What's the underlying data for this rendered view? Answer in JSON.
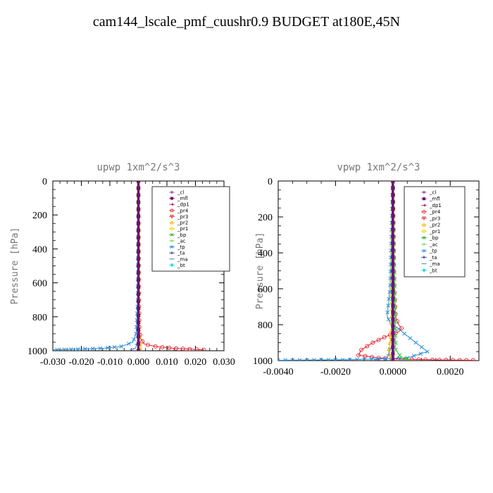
{
  "page": {
    "title": "cam144_lscale_pmf_cuushr0.9  BUDGET at180E,45N"
  },
  "chart_data": [
    {
      "type": "line",
      "title": "upwp  1xm^2/s^3",
      "xlabel": "",
      "ylabel": "Pressure [hPa]",
      "xlim": [
        -0.03,
        0.03
      ],
      "ylim": [
        1000,
        0
      ],
      "xticks": [
        -0.03,
        -0.02,
        -0.01,
        0.0,
        0.01,
        0.02,
        0.03
      ],
      "xtick_labels": [
        "-0.030",
        "-0.020",
        "-0.010",
        "0.000",
        "0.010",
        "0.020",
        "0.030"
      ],
      "yticks": [
        0,
        200,
        400,
        600,
        800,
        1000
      ],
      "ytick_labels": [
        "0",
        "200",
        "400",
        "600",
        "800",
        "1000"
      ],
      "legend": [
        "_cl",
        "_mfl",
        "_dp1",
        "_pr4",
        "_pr3",
        "_pr2",
        "_pr1",
        "_bp",
        "_ac",
        "_tp",
        "_ta",
        "_ma",
        "_bt"
      ],
      "series": [
        {
          "name": "_pr4",
          "color": "#e8202a",
          "marker": "o",
          "x": [
            0.0,
            0.0001,
            0.0003,
            0.0008,
            0.002,
            0.006,
            0.012,
            0.018,
            0.023
          ],
          "y": [
            0,
            600,
            860,
            930,
            960,
            975,
            985,
            990,
            995
          ]
        },
        {
          "name": "_tp",
          "color": "#2f8fd8",
          "marker": "x",
          "x": [
            0.0,
            -0.0002,
            -0.0008,
            -0.002,
            -0.006,
            -0.012,
            -0.02,
            -0.026,
            -0.031
          ],
          "y": [
            0,
            700,
            900,
            950,
            975,
            985,
            990,
            993,
            995
          ]
        },
        {
          "name": "_pr2",
          "color": "#f5b400",
          "marker": "^",
          "x": [
            0.0,
            0.0001,
            0.0005,
            0.001,
            0.0008
          ],
          "y": [
            0,
            850,
            960,
            985,
            995
          ]
        },
        {
          "name": "_ma",
          "color": "#4488cc",
          "marker": "-",
          "x": [
            0.0,
            -0.0003,
            -0.001,
            -0.003
          ],
          "y": [
            0,
            940,
            985,
            995
          ]
        },
        {
          "name": "_bt",
          "color": "#00e0e0",
          "marker": "d",
          "x": [
            0.0,
            0.0,
            0.0
          ],
          "y": [
            0,
            500,
            1000
          ]
        },
        {
          "name": "_cl",
          "color": "#8a5bb0",
          "marker": "*",
          "x": [
            0.0,
            0.0,
            0.0
          ],
          "y": [
            0,
            500,
            1000
          ]
        },
        {
          "name": "_mfl",
          "color": "#6a1470",
          "marker": "s",
          "x": [
            0.0,
            0.0,
            0.0
          ],
          "y": [
            0,
            500,
            1000
          ]
        }
      ]
    },
    {
      "type": "line",
      "title": "vpwp  1xm^2/s^3",
      "xlabel": "",
      "ylabel": "Pressure [hPa]",
      "xlim": [
        -0.004,
        0.003
      ],
      "ylim": [
        1000,
        0
      ],
      "xticks": [
        -0.004,
        -0.002,
        0.0,
        0.002
      ],
      "xtick_labels": [
        "-0.0040",
        "-0.0020",
        "0.0000",
        "0.0020"
      ],
      "yticks": [
        0,
        200,
        400,
        600,
        800,
        1000
      ],
      "ytick_labels": [
        "0",
        "200",
        "400",
        "600",
        "800",
        "1000"
      ],
      "legend": [
        "_cl",
        "_mfl",
        "_dp1",
        "_pr4",
        "_pr3",
        "_pr2",
        "_pr1",
        "_bp",
        "_ac",
        "_tp",
        "_ta",
        "_ma",
        "_bt"
      ],
      "series": [
        {
          "name": "_pr4",
          "color": "#e8202a",
          "marker": "o",
          "x": [
            0.0,
            5e-05,
            0.0001,
            0.0002,
            0.0003,
            0.0002,
            0.0,
            -0.0003,
            -0.0007,
            -0.0011,
            -0.0012,
            -0.0005,
            0.0003,
            0.0015,
            0.0028
          ],
          "y": [
            0,
            600,
            760,
            800,
            820,
            840,
            850,
            870,
            900,
            940,
            970,
            985,
            992,
            996,
            998
          ]
        },
        {
          "name": "_tp",
          "color": "#2f8fd8",
          "marker": "x",
          "x": [
            0.0,
            -0.0001,
            -0.0002,
            -0.0001,
            0.0001,
            0.0004,
            0.0008,
            0.0012,
            0.0005,
            -0.0015,
            -0.004
          ],
          "y": [
            0,
            600,
            750,
            790,
            810,
            850,
            900,
            950,
            985,
            995,
            998
          ]
        },
        {
          "name": "_pr2",
          "color": "#f5b400",
          "marker": "^",
          "x": [
            0.0,
            -5e-05,
            -0.0001,
            -0.00015,
            -0.0001,
            0.0
          ],
          "y": [
            0,
            850,
            900,
            950,
            980,
            995
          ]
        },
        {
          "name": "_ac",
          "color": "#33cc33",
          "marker": "x",
          "x": [
            0.0,
            0.0001,
            0.0003,
            0.0006
          ],
          "y": [
            0,
            940,
            985,
            995
          ]
        },
        {
          "name": "_ma",
          "color": "#4488cc",
          "marker": "-",
          "x": [
            0.0,
            0.0,
            -0.0002,
            -0.0006
          ],
          "y": [
            0,
            900,
            985,
            995
          ]
        },
        {
          "name": "_bt",
          "color": "#00e0e0",
          "marker": "d",
          "x": [
            0.0,
            0.0,
            0.0
          ],
          "y": [
            0,
            500,
            1000
          ]
        },
        {
          "name": "_cl",
          "color": "#8a5bb0",
          "marker": "*",
          "x": [
            0.0,
            0.0,
            0.0
          ],
          "y": [
            0,
            500,
            1000
          ]
        },
        {
          "name": "_mfl",
          "color": "#6a1470",
          "marker": "s",
          "x": [
            0.0,
            0.0,
            0.0
          ],
          "y": [
            0,
            500,
            1000
          ]
        }
      ]
    }
  ],
  "legend_styles": [
    {
      "name": "_cl",
      "color": "#8a5bb0",
      "marker": "*"
    },
    {
      "name": "_mfl",
      "color": "#6a1470",
      "marker": "s"
    },
    {
      "name": "_dp1",
      "color": "#b0306a",
      "marker": "<"
    },
    {
      "name": "_pr4",
      "color": "#e8202a",
      "marker": "o"
    },
    {
      "name": "_pr3",
      "color": "#e8202a",
      "marker": "v"
    },
    {
      "name": "_pr2",
      "color": "#f5b400",
      "marker": "^"
    },
    {
      "name": "_pr1",
      "color": "#f0d000",
      "marker": "o"
    },
    {
      "name": "_bp",
      "color": "#33aa33",
      "marker": "x"
    },
    {
      "name": "_ac",
      "color": "#66dd33",
      "marker": "+"
    },
    {
      "name": "_tp",
      "color": "#2f8fd8",
      "marker": "x"
    },
    {
      "name": "_ta",
      "color": "#2030a0",
      "marker": "+"
    },
    {
      "name": "_ma",
      "color": "#4488cc",
      "marker": "-"
    },
    {
      "name": "_bt",
      "color": "#00e0e0",
      "marker": "d"
    }
  ]
}
